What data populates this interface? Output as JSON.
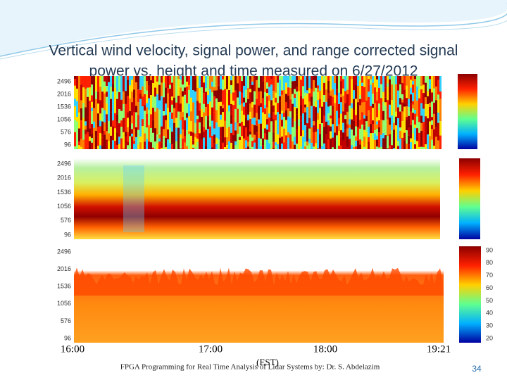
{
  "slide": {
    "title_line1": "Vertical wind velocity, signal power, and range corrected signal",
    "title_line2": "power vs. height and time measured on 6/27/2012",
    "panels": [
      {
        "yticks": [
          "2496",
          "2016",
          "1536",
          "1056",
          "576",
          "96"
        ]
      },
      {
        "yticks": [
          "2496",
          "2016",
          "1536",
          "1056",
          "576",
          "96"
        ]
      },
      {
        "yticks": [
          "2496",
          "2016",
          "1536",
          "1056",
          "576",
          "96"
        ],
        "colorbar_ticks": [
          "90",
          "80",
          "70",
          "60",
          "50",
          "40",
          "30",
          "20"
        ]
      }
    ],
    "time_labels": [
      "16:00",
      "17:00",
      "18:00",
      "19:21"
    ],
    "time_unit": "(EST)",
    "footer": "FPGA Programming for Real Time Analysis of Lidar Systems by: Dr. S. Abdelazim",
    "page_number": "34"
  }
}
